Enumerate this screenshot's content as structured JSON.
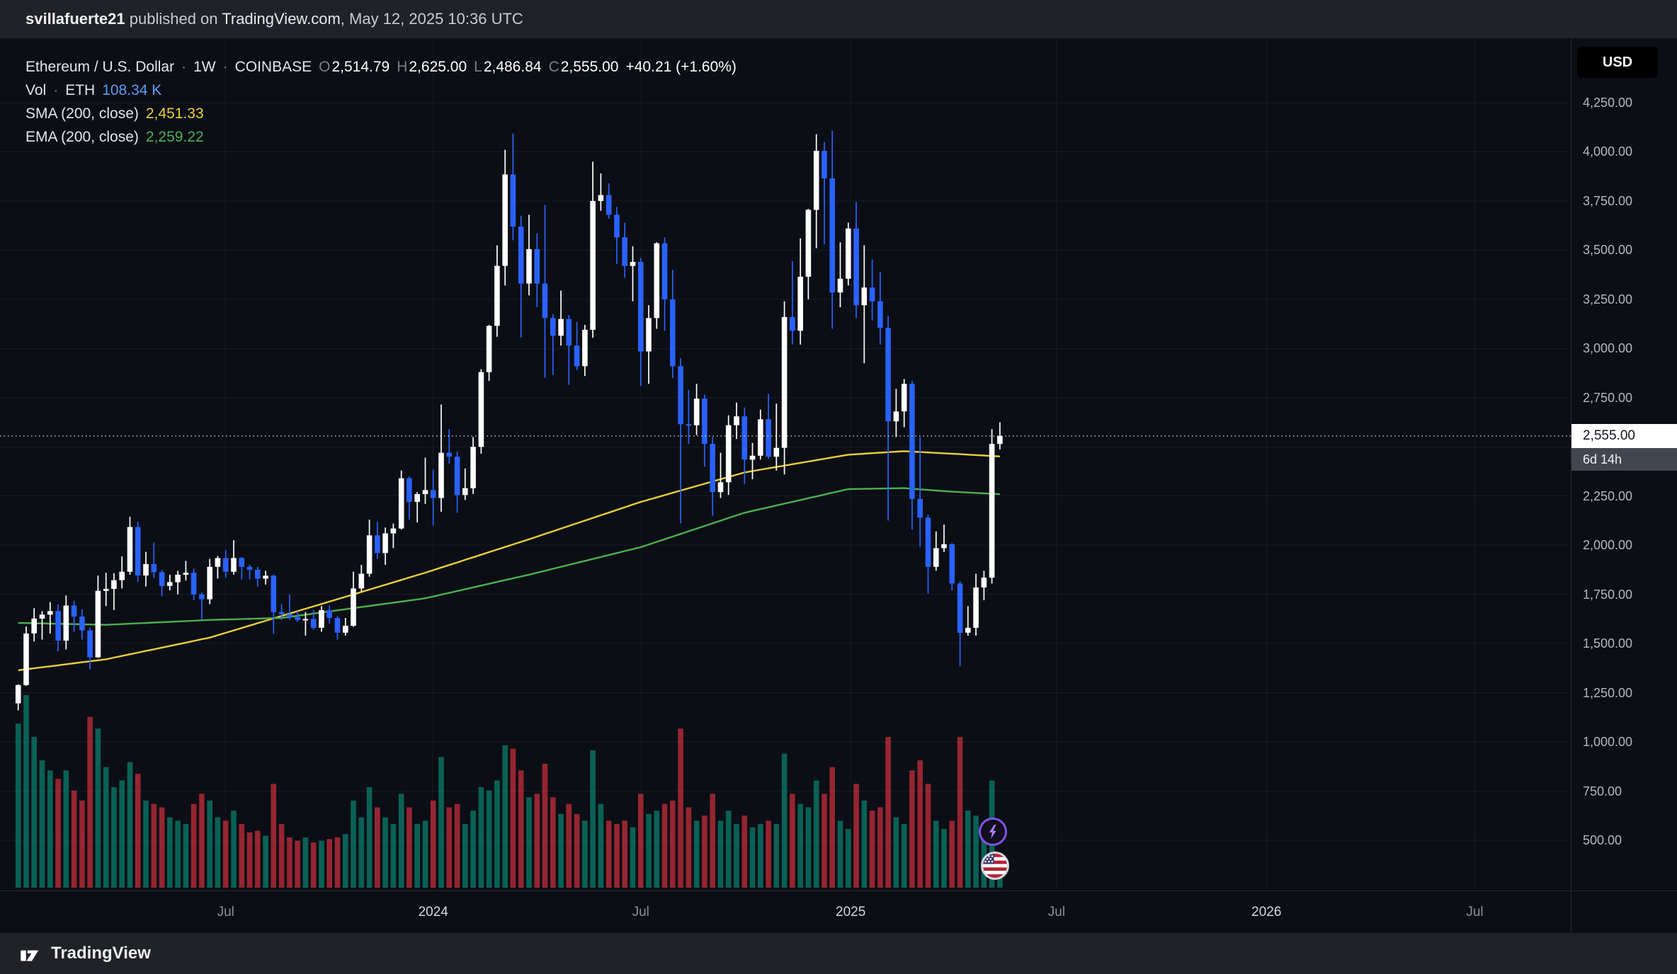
{
  "header": {
    "username": "svillafuerte21",
    "published_text": " published on ",
    "site": "TradingView.com",
    "date_text": ", May 12, 2025 10:36 UTC"
  },
  "footer": {
    "brand": "TradingView"
  },
  "legend": {
    "symbol": "Ethereum / U.S. Dollar",
    "separator": "·",
    "interval": "1W",
    "exchange": "COINBASE",
    "ohlc": {
      "o_label": "O",
      "o": "2,514.79",
      "h_label": "H",
      "h": "2,625.00",
      "l_label": "L",
      "l": "2,486.84",
      "c_label": "C",
      "c": "2,555.00",
      "change": "+40.21 (+1.60%)"
    },
    "volume": {
      "label": "Vol",
      "separator": "·",
      "unit": "ETH",
      "value": "108.34 K"
    },
    "sma": {
      "label": "SMA (200, close)",
      "value": "2,451.33"
    },
    "ema": {
      "label": "EMA (200, close)",
      "value": "2,259.22"
    }
  },
  "axis_ui": {
    "currency_button": "USD",
    "last_price": "2,555.00",
    "countdown": "6d 14h"
  },
  "chart_data": {
    "type": "candlestick",
    "title": "Ethereum / U.S. Dollar · 1W · COINBASE",
    "pair": "ETH/USD",
    "exchange": "COINBASE",
    "interval": "1W",
    "start_week": "2023-01-02",
    "price_line": 2555,
    "volume_axis_max_k": 1150,
    "colors": {
      "up": "#ffffff",
      "down": "#2962ff",
      "vol_up": "rgba(8,153,129,0.6)",
      "vol_down": "rgba(242,54,69,0.6)",
      "sma": "#e9cf3a",
      "ema": "#4caf50",
      "grid": "rgba(255,255,255,0.055)",
      "background": "#0c0e15"
    },
    "y_axis": {
      "visible_range": [
        245,
        4577
      ],
      "ticks": [
        4250,
        4000,
        3750,
        3500,
        3250,
        3000,
        2750,
        2250,
        2000,
        1750,
        1500,
        1250,
        1000,
        750,
        500
      ],
      "grid_prices": [
        500,
        750,
        1000,
        1250,
        1500,
        1750,
        2000,
        2250,
        2500,
        2750,
        3000,
        3250,
        3500,
        3750,
        4000,
        4250
      ]
    },
    "x_axis": {
      "labels": [
        {
          "label": "Jul",
          "week": 26,
          "year": false
        },
        {
          "label": "2024",
          "week": 52,
          "year": true
        },
        {
          "label": "Jul",
          "week": 78,
          "year": false
        },
        {
          "label": "2025",
          "week": 104.3,
          "year": true
        },
        {
          "label": "Jul",
          "week": 130.1,
          "year": false
        },
        {
          "label": "2026",
          "week": 156.4,
          "year": true
        },
        {
          "label": "Jul",
          "week": 182.5,
          "year": false
        }
      ]
    },
    "sma_200": [
      [
        0,
        1364
      ],
      [
        11,
        1420
      ],
      [
        24,
        1530
      ],
      [
        33,
        1640
      ],
      [
        51,
        1860
      ],
      [
        64,
        2030
      ],
      [
        78,
        2220
      ],
      [
        91,
        2370
      ],
      [
        104,
        2460
      ],
      [
        111,
        2478
      ],
      [
        117,
        2465
      ],
      [
        123,
        2451.33
      ]
    ],
    "ema_200": [
      [
        0,
        1605
      ],
      [
        11,
        1595
      ],
      [
        24,
        1620
      ],
      [
        33,
        1630
      ],
      [
        51,
        1730
      ],
      [
        64,
        1850
      ],
      [
        78,
        1990
      ],
      [
        91,
        2165
      ],
      [
        104,
        2285
      ],
      [
        111,
        2290
      ],
      [
        117,
        2272
      ],
      [
        123,
        2259.22
      ]
    ],
    "candles_ohlcv": [
      [
        1196,
        1293,
        1160,
        1289,
        980
      ],
      [
        1289,
        1587,
        1285,
        1551,
        1150
      ],
      [
        1551,
        1680,
        1510,
        1627,
        900
      ],
      [
        1627,
        1665,
        1520,
        1647,
        760
      ],
      [
        1647,
        1711,
        1551,
        1665,
        700
      ],
      [
        1665,
        1700,
        1461,
        1515,
        650
      ],
      [
        1515,
        1745,
        1470,
        1693,
        700
      ],
      [
        1693,
        1718,
        1560,
        1637,
        580
      ],
      [
        1637,
        1674,
        1520,
        1567,
        520
      ],
      [
        1567,
        1580,
        1368,
        1430,
        1020
      ],
      [
        1430,
        1846,
        1427,
        1768,
        950
      ],
      [
        1768,
        1860,
        1690,
        1778,
        720
      ],
      [
        1778,
        1858,
        1670,
        1822,
        600
      ],
      [
        1822,
        1943,
        1780,
        1865,
        640
      ],
      [
        1865,
        2145,
        1850,
        2092,
        750
      ],
      [
        2092,
        2120,
        1813,
        1846,
        680
      ],
      [
        1846,
        1966,
        1790,
        1904,
        520
      ],
      [
        1904,
        2014,
        1832,
        1863,
        500
      ],
      [
        1863,
        1875,
        1740,
        1793,
        480
      ],
      [
        1793,
        1850,
        1770,
        1812,
        420
      ],
      [
        1812,
        1870,
        1750,
        1850,
        400
      ],
      [
        1850,
        1920,
        1820,
        1860,
        380
      ],
      [
        1860,
        1880,
        1720,
        1750,
        500
      ],
      [
        1750,
        1760,
        1620,
        1725,
        560
      ],
      [
        1725,
        1930,
        1700,
        1890,
        520
      ],
      [
        1890,
        1945,
        1830,
        1934,
        420
      ],
      [
        1934,
        1975,
        1835,
        1865,
        400
      ],
      [
        1865,
        2025,
        1850,
        1935,
        460
      ],
      [
        1935,
        1940,
        1825,
        1890,
        380
      ],
      [
        1890,
        1900,
        1825,
        1875,
        330
      ],
      [
        1875,
        1890,
        1790,
        1830,
        340
      ],
      [
        1830,
        1870,
        1800,
        1845,
        310
      ],
      [
        1845,
        1850,
        1550,
        1660,
        620
      ],
      [
        1660,
        1700,
        1620,
        1650,
        380
      ],
      [
        1650,
        1750,
        1620,
        1635,
        300
      ],
      [
        1635,
        1665,
        1610,
        1620,
        280
      ],
      [
        1620,
        1660,
        1540,
        1625,
        300
      ],
      [
        1625,
        1670,
        1570,
        1580,
        270
      ],
      [
        1580,
        1690,
        1560,
        1670,
        280
      ],
      [
        1670,
        1695,
        1600,
        1630,
        290
      ],
      [
        1630,
        1640,
        1520,
        1555,
        300
      ],
      [
        1555,
        1630,
        1540,
        1590,
        320
      ],
      [
        1590,
        1865,
        1585,
        1780,
        520
      ],
      [
        1780,
        1900,
        1765,
        1855,
        420
      ],
      [
        1855,
        2130,
        1840,
        2050,
        600
      ],
      [
        2050,
        2120,
        1930,
        1960,
        480
      ],
      [
        1960,
        2090,
        1900,
        2060,
        420
      ],
      [
        2060,
        2110,
        1985,
        2085,
        380
      ],
      [
        2085,
        2380,
        2080,
        2340,
        560
      ],
      [
        2340,
        2350,
        2130,
        2220,
        480
      ],
      [
        2220,
        2270,
        2115,
        2260,
        380
      ],
      [
        2260,
        2445,
        2210,
        2280,
        400
      ],
      [
        2280,
        2385,
        2100,
        2240,
        520
      ],
      [
        2240,
        2715,
        2170,
        2470,
        780
      ],
      [
        2470,
        2590,
        2415,
        2450,
        480
      ],
      [
        2450,
        2475,
        2165,
        2255,
        500
      ],
      [
        2255,
        2390,
        2230,
        2290,
        380
      ],
      [
        2290,
        2550,
        2260,
        2500,
        460
      ],
      [
        2500,
        2895,
        2465,
        2880,
        600
      ],
      [
        2880,
        3120,
        2835,
        3115,
        580
      ],
      [
        3115,
        3525,
        3060,
        3420,
        640
      ],
      [
        3420,
        4010,
        3320,
        3885,
        850
      ],
      [
        3885,
        4093,
        3550,
        3620,
        830
      ],
      [
        3620,
        3675,
        3056,
        3330,
        700
      ],
      [
        3330,
        3680,
        3270,
        3505,
        540
      ],
      [
        3505,
        3585,
        3210,
        3330,
        560
      ],
      [
        3330,
        3730,
        2852,
        3155,
        740
      ],
      [
        3155,
        3175,
        2865,
        3065,
        540
      ],
      [
        3065,
        3295,
        3015,
        3150,
        440
      ],
      [
        3150,
        3170,
        2815,
        3015,
        500
      ],
      [
        3015,
        3135,
        2890,
        2910,
        440
      ],
      [
        2910,
        3120,
        2860,
        3095,
        400
      ],
      [
        3095,
        3950,
        3055,
        3750,
        820
      ],
      [
        3750,
        3890,
        3700,
        3780,
        500
      ],
      [
        3780,
        3840,
        3660,
        3680,
        400
      ],
      [
        3680,
        3720,
        3430,
        3565,
        380
      ],
      [
        3565,
        3640,
        3360,
        3420,
        400
      ],
      [
        3420,
        3520,
        3240,
        3440,
        360
      ],
      [
        3440,
        3460,
        2810,
        2985,
        560
      ],
      [
        2985,
        3220,
        2820,
        3155,
        440
      ],
      [
        3155,
        3540,
        3100,
        3535,
        460
      ],
      [
        3535,
        3565,
        3090,
        3250,
        500
      ],
      [
        3250,
        3400,
        2850,
        2910,
        520
      ],
      [
        2910,
        2950,
        2111,
        2615,
        950
      ],
      [
        2615,
        2790,
        2515,
        2610,
        480
      ],
      [
        2610,
        2820,
        2560,
        2745,
        400
      ],
      [
        2745,
        2765,
        2400,
        2515,
        430
      ],
      [
        2515,
        2550,
        2150,
        2270,
        560
      ],
      [
        2270,
        2470,
        2240,
        2320,
        400
      ],
      [
        2320,
        2660,
        2255,
        2610,
        460
      ],
      [
        2610,
        2725,
        2540,
        2655,
        380
      ],
      [
        2655,
        2700,
        2310,
        2435,
        430
      ],
      [
        2435,
        2520,
        2335,
        2455,
        360
      ],
      [
        2455,
        2690,
        2435,
        2640,
        380
      ],
      [
        2640,
        2770,
        2440,
        2450,
        400
      ],
      [
        2450,
        2720,
        2380,
        2495,
        380
      ],
      [
        2495,
        3240,
        2360,
        3160,
        800
      ],
      [
        3160,
        3445,
        3020,
        3090,
        560
      ],
      [
        3090,
        3560,
        3020,
        3365,
        500
      ],
      [
        3365,
        3710,
        3250,
        3705,
        480
      ],
      [
        3705,
        4090,
        3510,
        4005,
        640
      ],
      [
        4005,
        4050,
        3530,
        3865,
        560
      ],
      [
        3865,
        4107,
        3100,
        3285,
        720
      ],
      [
        3285,
        3540,
        3210,
        3355,
        400
      ],
      [
        3355,
        3640,
        3320,
        3610,
        350
      ],
      [
        3610,
        3745,
        3155,
        3220,
        620
      ],
      [
        3220,
        3525,
        2925,
        3310,
        520
      ],
      [
        3310,
        3453,
        3142,
        3240,
        460
      ],
      [
        3240,
        3390,
        3020,
        3105,
        480
      ],
      [
        3105,
        3165,
        2125,
        2630,
        900
      ],
      [
        2630,
        2795,
        2550,
        2680,
        420
      ],
      [
        2680,
        2845,
        2600,
        2820,
        380
      ],
      [
        2820,
        2835,
        2080,
        2235,
        700
      ],
      [
        2235,
        2550,
        1990,
        2140,
        760
      ],
      [
        2140,
        2155,
        1754,
        1890,
        620
      ],
      [
        1890,
        2070,
        1870,
        1985,
        400
      ],
      [
        1985,
        2105,
        1965,
        2005,
        350
      ],
      [
        2005,
        2010,
        1770,
        1805,
        400
      ],
      [
        1805,
        1815,
        1385,
        1555,
        900
      ],
      [
        1555,
        1690,
        1540,
        1580,
        460
      ],
      [
        1580,
        1855,
        1540,
        1785,
        430
      ],
      [
        1785,
        1870,
        1720,
        1835,
        390
      ],
      [
        1835,
        2590,
        1805,
        2515,
        640
      ],
      [
        2514.79,
        2625,
        2486.84,
        2555,
        108.34
      ]
    ]
  }
}
